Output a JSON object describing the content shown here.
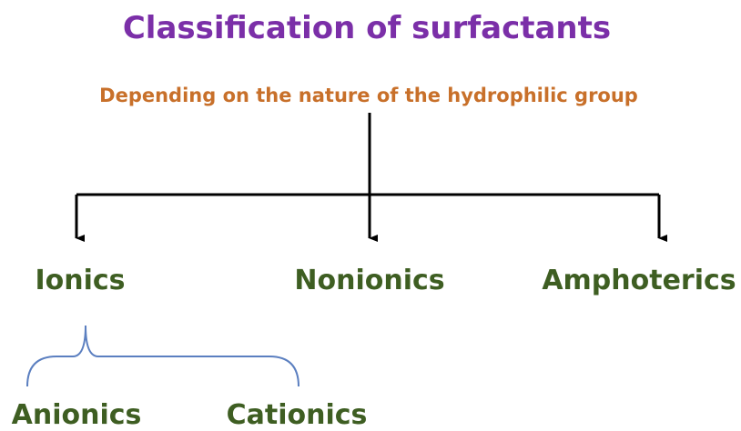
{
  "title": "Classification of surfactants",
  "subtitle": "Depending on the nature of the hydrophilic group",
  "nodes": [
    {
      "label": "Ionics"
    },
    {
      "label": "Nonionics"
    },
    {
      "label": "Amphoterics"
    }
  ],
  "subnodes": [
    {
      "label": "Anionics"
    },
    {
      "label": "Cationics"
    }
  ]
}
